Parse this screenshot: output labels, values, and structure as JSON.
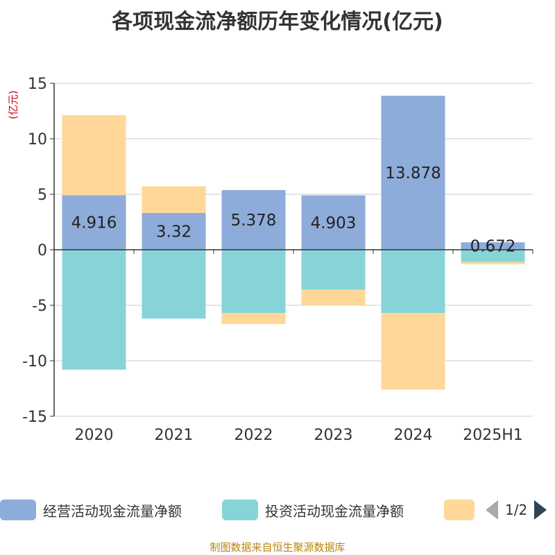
{
  "title": "各项现金流净额历年变化情况(亿元)",
  "y_unit": "(亿元)",
  "source": "制图数据来自恒生聚源数据库",
  "legend": {
    "items": [
      {
        "label": "经营活动现金流量净额",
        "color": "#8eacd9"
      },
      {
        "label": "投资活动现金流量净额",
        "color": "#87d4d8"
      },
      {
        "label": "",
        "color": "#ffd799"
      }
    ],
    "pager": "1/2"
  },
  "chart_data": {
    "type": "bar",
    "stacked": true,
    "categories": [
      "2020",
      "2021",
      "2022",
      "2023",
      "2024",
      "2025H1"
    ],
    "ylim": [
      -15,
      15
    ],
    "yticks": [
      15,
      10,
      5,
      0,
      -5,
      -10,
      -15
    ],
    "grid": true,
    "legend_position": "bottom",
    "series": [
      {
        "name": "经营活动现金流量净额",
        "color": "#8eacd9",
        "values": [
          4.916,
          3.32,
          5.378,
          4.903,
          13.878,
          0.672
        ],
        "show_labels": true
      },
      {
        "name": "投资活动现金流量净额",
        "color": "#87d4d8",
        "values": [
          -10.8,
          -6.2,
          -5.7,
          -3.6,
          -5.7,
          -1.1
        ],
        "show_labels": false
      },
      {
        "name": "",
        "color": "#ffd799",
        "values": [
          7.2,
          2.4,
          -1.0,
          -1.4,
          -6.9,
          -0.2
        ],
        "show_labels": false
      }
    ]
  }
}
